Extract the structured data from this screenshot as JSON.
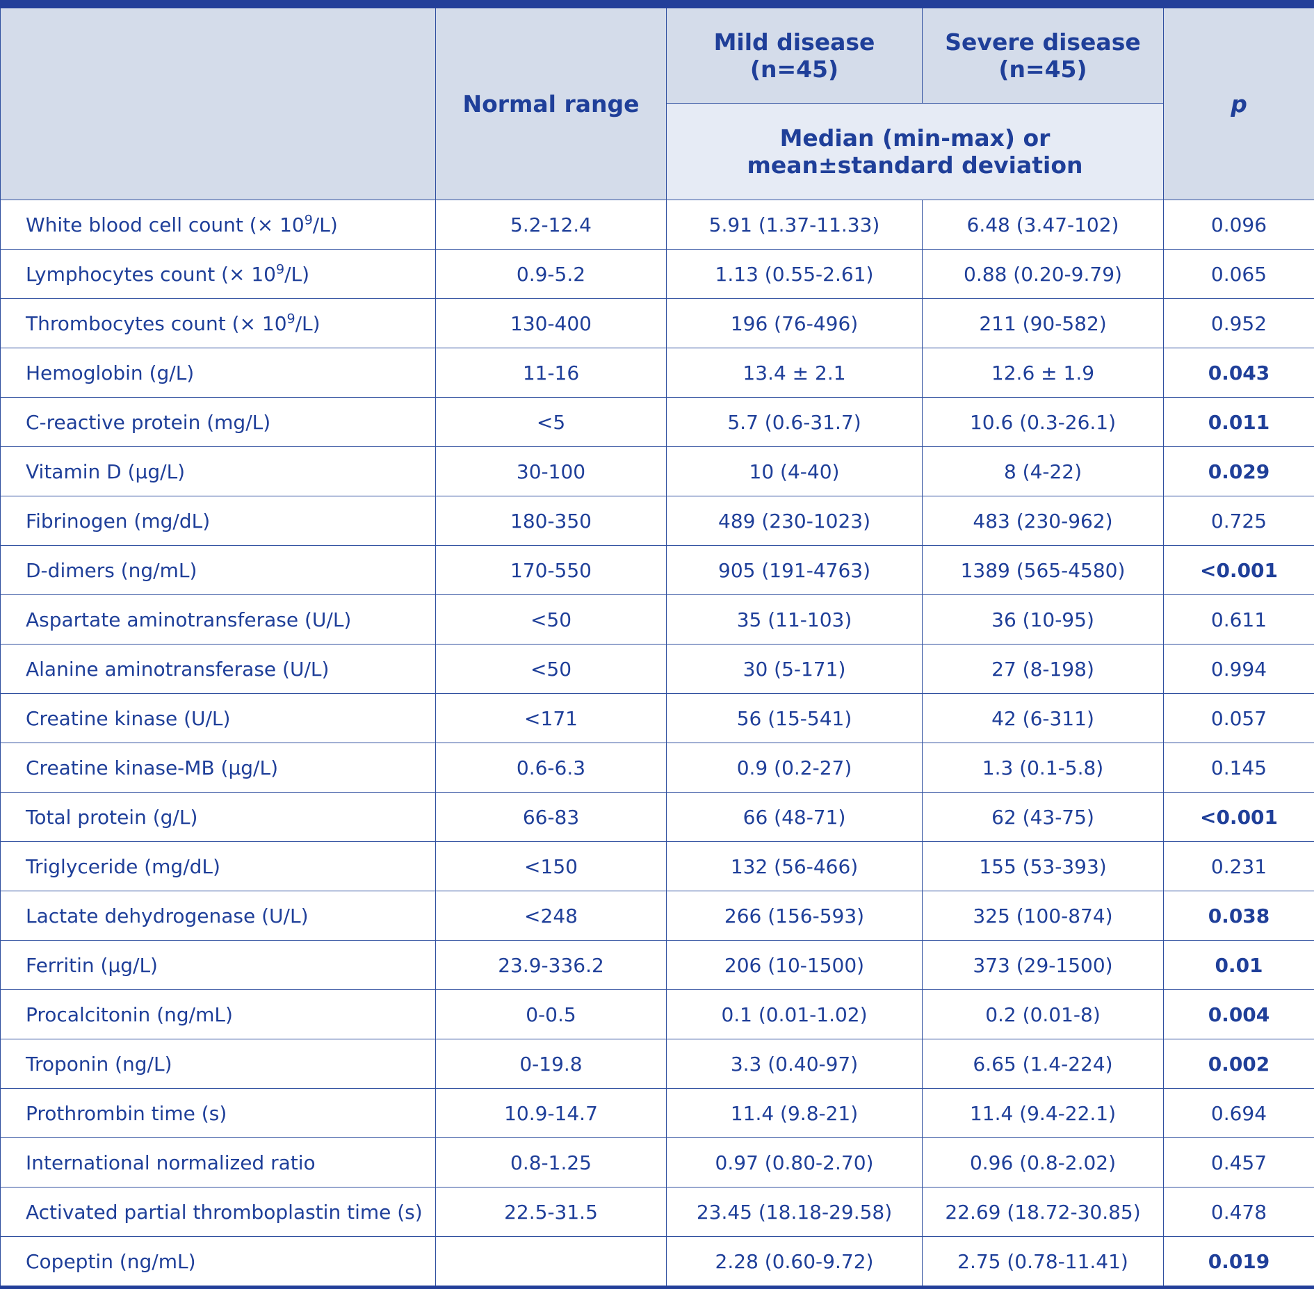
{
  "header": {
    "normal_range": "Normal range",
    "mild": "Mild disease (n=45)",
    "severe": "Severe disease (n=45)",
    "stat": "Median (min-max) or mean±standard deviation",
    "p": "p"
  },
  "rows": [
    {
      "name": "White blood cell count (× 10",
      "sup": "9",
      "unit": "/L)",
      "normal": "5.2-12.4",
      "mild": "5.91 (1.37-11.33)",
      "severe": "6.48 (3.47-102)",
      "p": "0.096",
      "sig": false
    },
    {
      "name": "Lymphocytes count (× 10",
      "sup": "9",
      "unit": "/L)",
      "normal": "0.9-5.2",
      "mild": "1.13 (0.55-2.61)",
      "severe": "0.88 (0.20-9.79)",
      "p": "0.065",
      "sig": false
    },
    {
      "name": "Thrombocytes count (× 10",
      "sup": "9",
      "unit": "/L)",
      "normal": "130-400",
      "mild": "196 (76-496)",
      "severe": "211 (90-582)",
      "p": "0.952",
      "sig": false
    },
    {
      "name": "Hemoglobin (g/L)",
      "normal": "11-16",
      "mild": "13.4 ± 2.1",
      "severe": "12.6 ± 1.9",
      "p": "0.043",
      "sig": true
    },
    {
      "name": "C-reactive protein (mg/L)",
      "normal": "<5",
      "mild": "5.7 (0.6-31.7)",
      "severe": "10.6 (0.3-26.1)",
      "p": "0.011",
      "sig": true
    },
    {
      "name": "Vitamin D (µg/L)",
      "normal": "30-100",
      "mild": "10 (4-40)",
      "severe": "8 (4-22)",
      "p": "0.029",
      "sig": true
    },
    {
      "name": "Fibrinogen (mg/dL)",
      "normal": "180-350",
      "mild": "489 (230-1023)",
      "severe": "483 (230-962)",
      "p": "0.725",
      "sig": false
    },
    {
      "name": "D-dimers (ng/mL)",
      "normal": "170-550",
      "mild": "905 (191-4763)",
      "severe": "1389 (565-4580)",
      "p": "<0.001",
      "sig": true
    },
    {
      "name": "Aspartate aminotransferase (U/L)",
      "normal": "<50",
      "mild": "35 (11-103)",
      "severe": "36 (10-95)",
      "p": "0.611",
      "sig": false
    },
    {
      "name": "Alanine aminotransferase (U/L)",
      "normal": "<50",
      "mild": "30 (5-171)",
      "severe": "27 (8-198)",
      "p": "0.994",
      "sig": false
    },
    {
      "name": "Creatine kinase (U/L)",
      "normal": "<171",
      "mild": "56 (15-541)",
      "severe": "42 (6-311)",
      "p": "0.057",
      "sig": false
    },
    {
      "name": "Creatine kinase-MB (µg/L)",
      "normal": "0.6-6.3",
      "mild": "0.9 (0.2-27)",
      "severe": "1.3 (0.1-5.8)",
      "p": "0.145",
      "sig": false
    },
    {
      "name": "Total protein (g/L)",
      "normal": "66-83",
      "mild": "66 (48-71)",
      "severe": "62 (43-75)",
      "p": "<0.001",
      "sig": true
    },
    {
      "name": "Triglyceride (mg/dL)",
      "normal": "<150",
      "mild": "132 (56-466)",
      "severe": "155 (53-393)",
      "p": "0.231",
      "sig": false
    },
    {
      "name": "Lactate dehydrogenase (U/L)",
      "normal": "<248",
      "mild": "266 (156-593)",
      "severe": "325 (100-874)",
      "p": "0.038",
      "sig": true
    },
    {
      "name": "Ferritin (µg/L)",
      "normal": "23.9-336.2",
      "mild": "206 (10-1500)",
      "severe": "373 (29-1500)",
      "p": "0.01",
      "sig": true
    },
    {
      "name": "Procalcitonin (ng/mL)",
      "normal": "0-0.5",
      "mild": "0.1 (0.01-1.02)",
      "severe": "0.2 (0.01-8)",
      "p": "0.004",
      "sig": true
    },
    {
      "name": "Troponin (ng/L)",
      "normal": "0-19.8",
      "mild": "3.3 (0.40-97)",
      "severe": "6.65 (1.4-224)",
      "p": "0.002",
      "sig": true
    },
    {
      "name": "Prothrombin time (s)",
      "normal": "10.9-14.7",
      "mild": "11.4 (9.8-21)",
      "severe": "11.4 (9.4-22.1)",
      "p": "0.694",
      "sig": false
    },
    {
      "name": "International normalized ratio",
      "normal": "0.8-1.25",
      "mild": "0.97 (0.80-2.70)",
      "severe": "0.96 (0.8-2.02)",
      "p": "0.457",
      "sig": false
    },
    {
      "name": "Activated partial thromboplastin time (s)",
      "normal": "22.5-31.5",
      "mild": "23.45 (18.18-29.58)",
      "severe": "22.69 (18.72-30.85)",
      "p": "0.478",
      "sig": false
    },
    {
      "name": "Copeptin (ng/mL)",
      "normal": "",
      "mild": "2.28 (0.60-9.72)",
      "severe": "2.75 (0.78-11.41)",
      "p": "0.019",
      "sig": true
    }
  ]
}
